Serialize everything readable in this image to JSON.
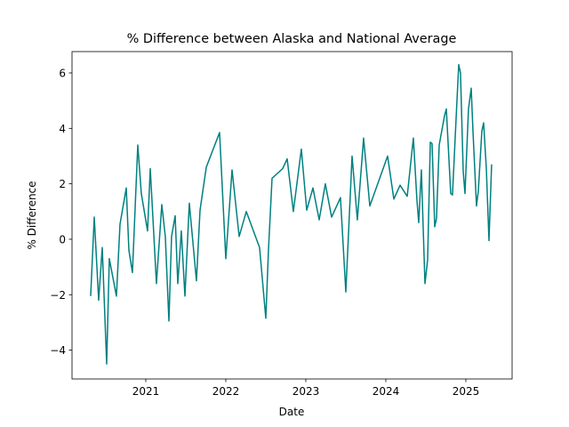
{
  "chart_data": {
    "type": "line",
    "title": "% Difference between Alaska and National Average",
    "x_label": "Date",
    "y_label": "% Difference",
    "x": [
      2020.311,
      2020.356,
      2020.411,
      2020.456,
      2020.511,
      2020.544,
      2020.633,
      2020.678,
      2020.756,
      2020.789,
      2020.833,
      2020.9,
      2020.944,
      2021.022,
      2021.056,
      2021.133,
      2021.2,
      2021.244,
      2021.289,
      2021.322,
      2021.367,
      2021.4,
      2021.444,
      2021.489,
      2021.544,
      2021.633,
      2021.678,
      2021.756,
      2021.922,
      2022.0,
      2022.078,
      2022.167,
      2022.256,
      2022.422,
      2022.5,
      2022.533,
      2022.578,
      2022.711,
      2022.767,
      2022.844,
      2022.944,
      2023.011,
      2023.089,
      2023.167,
      2023.244,
      2023.322,
      2023.433,
      2023.5,
      2023.578,
      2023.644,
      2023.722,
      2023.8,
      2024.022,
      2024.1,
      2024.178,
      2024.267,
      2024.344,
      2024.389,
      2024.411,
      2024.444,
      2024.489,
      2024.522,
      2024.556,
      2024.578,
      2024.611,
      2024.633,
      2024.667,
      2024.733,
      2024.756,
      2024.811,
      2024.833,
      2024.878,
      2024.911,
      2024.933,
      2024.967,
      2024.989,
      2025.033,
      2025.067,
      2025.089,
      2025.133,
      2025.156,
      2025.2,
      2025.222,
      2025.256,
      2025.289,
      2025.322
    ],
    "series": [
      {
        "name": "% Difference",
        "color": "#008080",
        "values": [
          -2.05,
          0.8,
          -2.2,
          -0.3,
          -4.5,
          -0.7,
          -2.05,
          0.55,
          1.85,
          -0.4,
          -1.2,
          3.4,
          1.65,
          0.3,
          2.55,
          -1.6,
          1.25,
          0.1,
          -2.95,
          0.1,
          0.85,
          -1.6,
          0.3,
          -2.05,
          1.3,
          -1.5,
          1.05,
          2.6,
          3.85,
          -0.7,
          2.5,
          0.1,
          1.0,
          -0.3,
          -2.85,
          -0.4,
          2.2,
          2.55,
          2.9,
          1.0,
          3.25,
          1.05,
          1.85,
          0.7,
          2.0,
          0.8,
          1.5,
          -1.9,
          3.0,
          0.7,
          3.65,
          1.2,
          3.0,
          1.45,
          1.95,
          1.55,
          3.65,
          1.4,
          0.6,
          2.5,
          -1.6,
          -0.75,
          3.5,
          3.45,
          0.45,
          0.75,
          3.4,
          4.45,
          4.7,
          1.65,
          1.6,
          4.35,
          6.3,
          6.0,
          2.45,
          1.65,
          4.7,
          5.45,
          3.9,
          1.2,
          1.75,
          3.9,
          4.2,
          2.55,
          -0.05,
          2.7
        ]
      }
    ],
    "xlim": [
      2020.078,
      2025.578
    ],
    "ylim": [
      -5.04,
      6.77
    ],
    "xticks": [
      2021,
      2022,
      2023,
      2024,
      2025
    ],
    "yticks": [
      {
        "value": -4,
        "label": "−4"
      },
      {
        "value": -2,
        "label": "−2"
      },
      0,
      2,
      4,
      6
    ]
  }
}
